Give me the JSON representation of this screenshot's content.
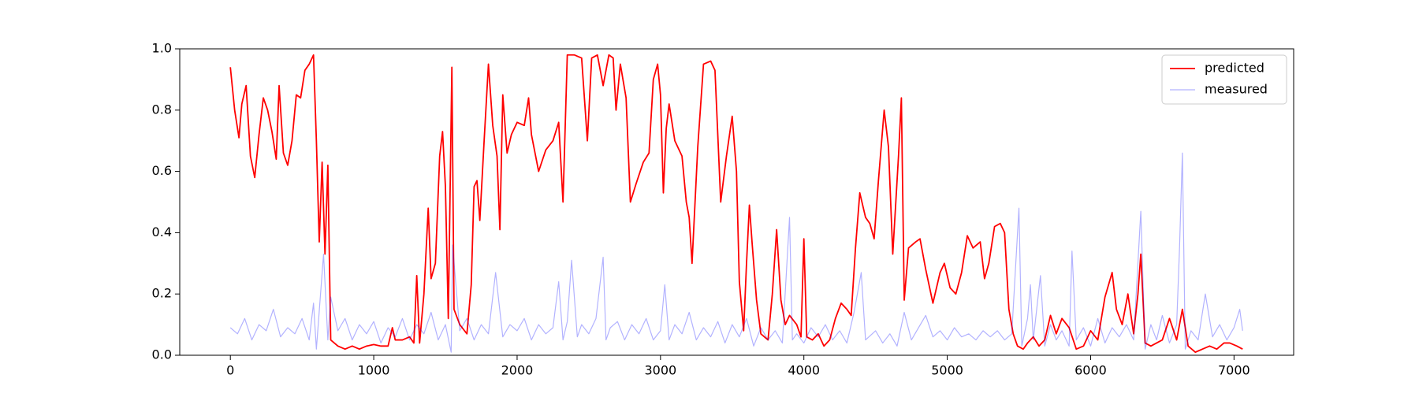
{
  "chart_data": {
    "type": "line",
    "xlim": [
      -353,
      7416
    ],
    "ylim": [
      0,
      1
    ],
    "xticks": [
      0,
      1000,
      2000,
      3000,
      4000,
      5000,
      6000,
      7000
    ],
    "yticks": [
      {
        "value": 0,
        "label": "0.0"
      },
      0.2,
      0.4,
      0.6,
      0.8,
      {
        "value": 1,
        "label": "1.0"
      }
    ],
    "legend": "upper right",
    "series": [
      {
        "name": "predicted",
        "color": "#ff0000",
        "width": 1.8,
        "opacity": 1,
        "x": [
          0,
          30,
          60,
          80,
          110,
          140,
          170,
          200,
          230,
          260,
          290,
          320,
          340,
          370,
          400,
          430,
          460,
          490,
          520,
          550,
          580,
          600,
          620,
          640,
          660,
          680,
          700,
          750,
          800,
          850,
          900,
          950,
          1000,
          1050,
          1100,
          1130,
          1150,
          1200,
          1250,
          1280,
          1300,
          1320,
          1350,
          1380,
          1400,
          1430,
          1460,
          1480,
          1500,
          1520,
          1545,
          1560,
          1600,
          1650,
          1680,
          1700,
          1720,
          1740,
          1770,
          1800,
          1830,
          1860,
          1880,
          1900,
          1930,
          1960,
          2000,
          2050,
          2080,
          2100,
          2150,
          2200,
          2250,
          2290,
          2320,
          2350,
          2400,
          2450,
          2490,
          2520,
          2560,
          2600,
          2640,
          2670,
          2690,
          2720,
          2760,
          2790,
          2830,
          2880,
          2920,
          2950,
          2980,
          3000,
          3020,
          3040,
          3060,
          3100,
          3150,
          3180,
          3200,
          3220,
          3260,
          3300,
          3350,
          3380,
          3420,
          3460,
          3500,
          3530,
          3550,
          3580,
          3600,
          3620,
          3640,
          3670,
          3700,
          3750,
          3780,
          3810,
          3840,
          3870,
          3900,
          3950,
          3980,
          4000,
          4020,
          4060,
          4100,
          4140,
          4180,
          4220,
          4260,
          4300,
          4330,
          4360,
          4390,
          4430,
          4460,
          4490,
          4520,
          4560,
          4590,
          4620,
          4660,
          4680,
          4700,
          4730,
          4780,
          4810,
          4850,
          4900,
          4950,
          4980,
          5020,
          5060,
          5100,
          5140,
          5180,
          5230,
          5260,
          5290,
          5330,
          5370,
          5400,
          5430,
          5460,
          5490,
          5530,
          5560,
          5600,
          5640,
          5680,
          5720,
          5760,
          5800,
          5850,
          5900,
          5950,
          6000,
          6050,
          6100,
          6150,
          6180,
          6220,
          6260,
          6300,
          6330,
          6350,
          6380,
          6420,
          6460,
          6500,
          6550,
          6600,
          6640,
          6680,
          6730,
          6780,
          6830,
          6880,
          6930,
          6970,
          7020,
          7060
        ],
        "values": [
          0.94,
          0.8,
          0.71,
          0.82,
          0.88,
          0.65,
          0.58,
          0.72,
          0.84,
          0.8,
          0.73,
          0.64,
          0.88,
          0.66,
          0.62,
          0.7,
          0.85,
          0.84,
          0.93,
          0.95,
          0.98,
          0.7,
          0.37,
          0.63,
          0.33,
          0.62,
          0.05,
          0.03,
          0.02,
          0.03,
          0.02,
          0.03,
          0.035,
          0.03,
          0.03,
          0.09,
          0.05,
          0.05,
          0.06,
          0.04,
          0.26,
          0.04,
          0.2,
          0.48,
          0.25,
          0.3,
          0.65,
          0.73,
          0.55,
          0.12,
          0.94,
          0.15,
          0.1,
          0.07,
          0.23,
          0.55,
          0.57,
          0.44,
          0.7,
          0.95,
          0.75,
          0.65,
          0.41,
          0.85,
          0.66,
          0.72,
          0.76,
          0.75,
          0.84,
          0.72,
          0.6,
          0.67,
          0.7,
          0.76,
          0.5,
          0.98,
          0.98,
          0.97,
          0.7,
          0.97,
          0.98,
          0.88,
          0.98,
          0.97,
          0.8,
          0.95,
          0.84,
          0.5,
          0.56,
          0.63,
          0.66,
          0.9,
          0.95,
          0.85,
          0.53,
          0.74,
          0.82,
          0.7,
          0.65,
          0.5,
          0.45,
          0.3,
          0.68,
          0.95,
          0.96,
          0.93,
          0.5,
          0.65,
          0.78,
          0.6,
          0.24,
          0.08,
          0.3,
          0.49,
          0.36,
          0.18,
          0.07,
          0.05,
          0.2,
          0.41,
          0.18,
          0.1,
          0.13,
          0.1,
          0.06,
          0.38,
          0.06,
          0.05,
          0.07,
          0.03,
          0.05,
          0.12,
          0.17,
          0.15,
          0.13,
          0.35,
          0.53,
          0.45,
          0.43,
          0.38,
          0.57,
          0.8,
          0.68,
          0.33,
          0.65,
          0.84,
          0.18,
          0.35,
          0.37,
          0.38,
          0.28,
          0.17,
          0.27,
          0.3,
          0.22,
          0.2,
          0.27,
          0.39,
          0.35,
          0.37,
          0.25,
          0.3,
          0.42,
          0.43,
          0.4,
          0.15,
          0.07,
          0.03,
          0.02,
          0.04,
          0.06,
          0.03,
          0.05,
          0.13,
          0.07,
          0.12,
          0.09,
          0.02,
          0.03,
          0.08,
          0.05,
          0.19,
          0.27,
          0.15,
          0.1,
          0.2,
          0.07,
          0.2,
          0.33,
          0.04,
          0.03,
          0.04,
          0.05,
          0.12,
          0.05,
          0.15,
          0.03,
          0.01,
          0.02,
          0.03,
          0.02,
          0.04,
          0.04,
          0.03,
          0.02
        ]
      },
      {
        "name": "measured",
        "color": "#0000ff",
        "width": 1.2,
        "opacity": 0.3,
        "x": [
          0,
          50,
          100,
          150,
          200,
          250,
          300,
          350,
          400,
          450,
          500,
          550,
          580,
          600,
          650,
          680,
          700,
          750,
          800,
          850,
          900,
          950,
          1000,
          1050,
          1100,
          1150,
          1200,
          1250,
          1300,
          1350,
          1400,
          1450,
          1500,
          1540,
          1550,
          1600,
          1650,
          1700,
          1750,
          1800,
          1850,
          1900,
          1950,
          2000,
          2050,
          2100,
          2150,
          2200,
          2250,
          2290,
          2320,
          2350,
          2380,
          2420,
          2450,
          2500,
          2550,
          2600,
          2620,
          2650,
          2700,
          2750,
          2800,
          2850,
          2900,
          2950,
          3000,
          3030,
          3060,
          3100,
          3150,
          3200,
          3250,
          3300,
          3350,
          3400,
          3450,
          3500,
          3550,
          3600,
          3650,
          3700,
          3750,
          3800,
          3850,
          3900,
          3920,
          3950,
          4000,
          4050,
          4100,
          4150,
          4200,
          4250,
          4300,
          4350,
          4400,
          4430,
          4500,
          4550,
          4600,
          4650,
          4700,
          4750,
          4800,
          4850,
          4900,
          4950,
          5000,
          5050,
          5100,
          5150,
          5200,
          5250,
          5300,
          5350,
          5400,
          5450,
          5500,
          5520,
          5560,
          5580,
          5600,
          5650,
          5680,
          5720,
          5760,
          5800,
          5850,
          5870,
          5900,
          5950,
          6000,
          6050,
          6100,
          6150,
          6200,
          6250,
          6300,
          6350,
          6380,
          6420,
          6460,
          6500,
          6550,
          6600,
          6620,
          6640,
          6660,
          6700,
          6750,
          6800,
          6850,
          6900,
          6950,
          7000,
          7040,
          7060
        ],
        "values": [
          0.09,
          0.07,
          0.12,
          0.05,
          0.1,
          0.08,
          0.15,
          0.06,
          0.09,
          0.07,
          0.12,
          0.05,
          0.17,
          0.02,
          0.33,
          0.05,
          0.19,
          0.08,
          0.12,
          0.05,
          0.1,
          0.07,
          0.11,
          0.04,
          0.09,
          0.06,
          0.12,
          0.05,
          0.1,
          0.07,
          0.14,
          0.05,
          0.1,
          0.01,
          0.36,
          0.08,
          0.12,
          0.05,
          0.1,
          0.07,
          0.27,
          0.06,
          0.1,
          0.08,
          0.12,
          0.05,
          0.1,
          0.07,
          0.09,
          0.24,
          0.05,
          0.11,
          0.31,
          0.06,
          0.1,
          0.07,
          0.12,
          0.32,
          0.05,
          0.09,
          0.11,
          0.05,
          0.1,
          0.07,
          0.12,
          0.05,
          0.08,
          0.23,
          0.05,
          0.1,
          0.07,
          0.14,
          0.05,
          0.09,
          0.06,
          0.11,
          0.04,
          0.1,
          0.06,
          0.12,
          0.03,
          0.09,
          0.05,
          0.08,
          0.04,
          0.45,
          0.05,
          0.07,
          0.04,
          0.09,
          0.06,
          0.1,
          0.05,
          0.08,
          0.04,
          0.14,
          0.27,
          0.05,
          0.08,
          0.04,
          0.07,
          0.03,
          0.14,
          0.05,
          0.09,
          0.13,
          0.06,
          0.08,
          0.05,
          0.09,
          0.06,
          0.07,
          0.05,
          0.08,
          0.06,
          0.08,
          0.05,
          0.07,
          0.48,
          0.03,
          0.12,
          0.23,
          0.05,
          0.26,
          0.03,
          0.1,
          0.05,
          0.08,
          0.03,
          0.34,
          0.05,
          0.09,
          0.03,
          0.12,
          0.04,
          0.09,
          0.06,
          0.1,
          0.05,
          0.47,
          0.02,
          0.1,
          0.05,
          0.13,
          0.04,
          0.1,
          0.35,
          0.66,
          0.02,
          0.08,
          0.05,
          0.2,
          0.06,
          0.1,
          0.05,
          0.09,
          0.15,
          0.08
        ]
      }
    ]
  }
}
